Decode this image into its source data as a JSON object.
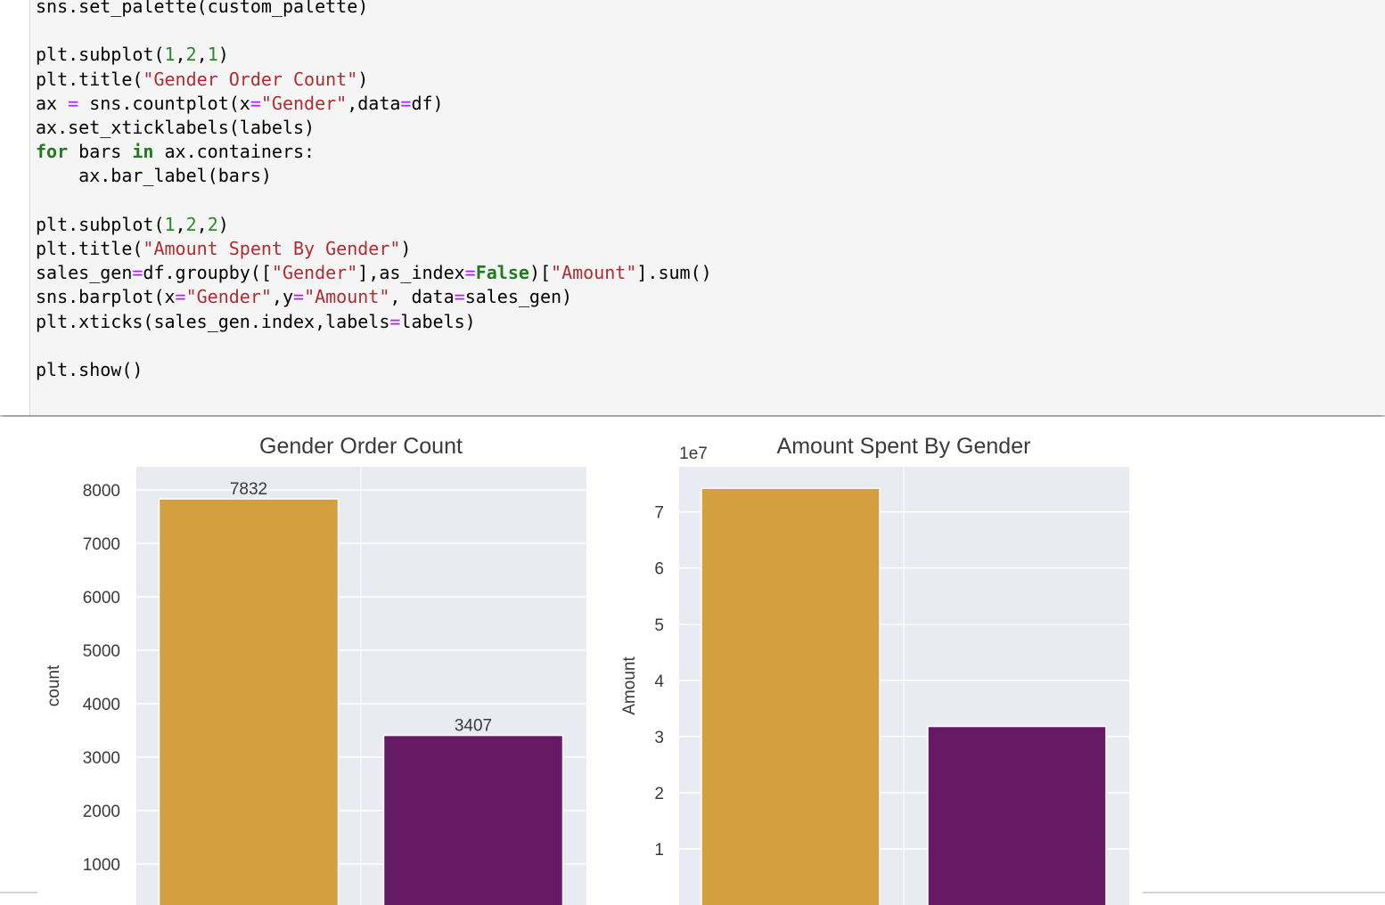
{
  "code": {
    "lines": [
      [
        [
          "sns.set_palette(custom_palette)",
          "p"
        ]
      ],
      [],
      [
        [
          "plt.subplot(",
          "p"
        ],
        [
          "1",
          "n"
        ],
        [
          ",",
          "p"
        ],
        [
          "2",
          "n"
        ],
        [
          ",",
          "p"
        ],
        [
          "1",
          "n"
        ],
        [
          ")",
          "p"
        ]
      ],
      [
        [
          "plt.title(",
          "p"
        ],
        [
          "\"Gender Order Count\"",
          "s"
        ],
        [
          ")",
          "p"
        ]
      ],
      [
        [
          "ax ",
          "p"
        ],
        [
          "=",
          "o"
        ],
        [
          " sns.countplot(x",
          "p"
        ],
        [
          "=",
          "o"
        ],
        [
          "\"Gender\"",
          "s"
        ],
        [
          ",data",
          "p"
        ],
        [
          "=",
          "o"
        ],
        [
          "df)",
          "p"
        ]
      ],
      [
        [
          "ax.set_xticklabels(labels)",
          "p"
        ]
      ],
      [
        [
          "for",
          "k"
        ],
        [
          " bars ",
          "p"
        ],
        [
          "in",
          "k"
        ],
        [
          " ax.containers:",
          "p"
        ]
      ],
      [
        [
          "    ax.bar_label(bars)",
          "p"
        ]
      ],
      [],
      [
        [
          "plt.subplot(",
          "p"
        ],
        [
          "1",
          "n"
        ],
        [
          ",",
          "p"
        ],
        [
          "2",
          "n"
        ],
        [
          ",",
          "p"
        ],
        [
          "2",
          "n"
        ],
        [
          ")",
          "p"
        ]
      ],
      [
        [
          "plt.title(",
          "p"
        ],
        [
          "\"Amount Spent By Gender\"",
          "s"
        ],
        [
          ")",
          "p"
        ]
      ],
      [
        [
          "sales_gen",
          "p"
        ],
        [
          "=",
          "o"
        ],
        [
          "df.groupby([",
          "p"
        ],
        [
          "\"Gender\"",
          "s"
        ],
        [
          "],as_index",
          "p"
        ],
        [
          "=",
          "o"
        ],
        [
          "False",
          "k"
        ],
        [
          ")[",
          "p"
        ],
        [
          "\"Amount\"",
          "s"
        ],
        [
          "].sum()",
          "p"
        ]
      ],
      [
        [
          "sns.barplot(x",
          "p"
        ],
        [
          "=",
          "o"
        ],
        [
          "\"Gender\"",
          "s"
        ],
        [
          ",y",
          "p"
        ],
        [
          "=",
          "o"
        ],
        [
          "\"Amount\"",
          "s"
        ],
        [
          ", data",
          "p"
        ],
        [
          "=",
          "o"
        ],
        [
          "sales_gen)",
          "p"
        ]
      ],
      [
        [
          "plt.xticks(sales_gen.index,labels",
          "p"
        ],
        [
          "=",
          "o"
        ],
        [
          "labels)",
          "p"
        ]
      ],
      [],
      [
        [
          "plt.show()",
          "p"
        ]
      ]
    ]
  },
  "chart_data": [
    {
      "type": "bar",
      "title": "Gender Order Count",
      "xlabel": "",
      "ylabel": "count",
      "ylim": [
        0,
        8150
      ],
      "yticks": [
        1000,
        2000,
        3000,
        4000,
        5000,
        6000,
        7000,
        8000
      ],
      "ytick_labels": [
        "1000",
        "2000",
        "3000",
        "4000",
        "5000",
        "6000",
        "7000",
        "8000"
      ],
      "scale_label": "",
      "values": [
        7832,
        3407
      ],
      "data_labels": [
        "7832",
        "3407"
      ],
      "colors": [
        "#d4a03f",
        "#661a66"
      ],
      "grid": true
    },
    {
      "type": "bar",
      "title": "Amount Spent By Gender",
      "xlabel": "",
      "ylabel": "Amount",
      "ylim": [
        0,
        7.75
      ],
      "yticks": [
        1,
        2,
        3,
        4,
        5,
        6,
        7
      ],
      "ytick_labels": [
        "1",
        "2",
        "3",
        "4",
        "5",
        "6",
        "7"
      ],
      "scale_label": "1e7",
      "values": [
        7.42,
        3.18
      ],
      "data_labels": [],
      "colors": [
        "#d4a03f",
        "#661a66"
      ],
      "grid": true
    }
  ]
}
